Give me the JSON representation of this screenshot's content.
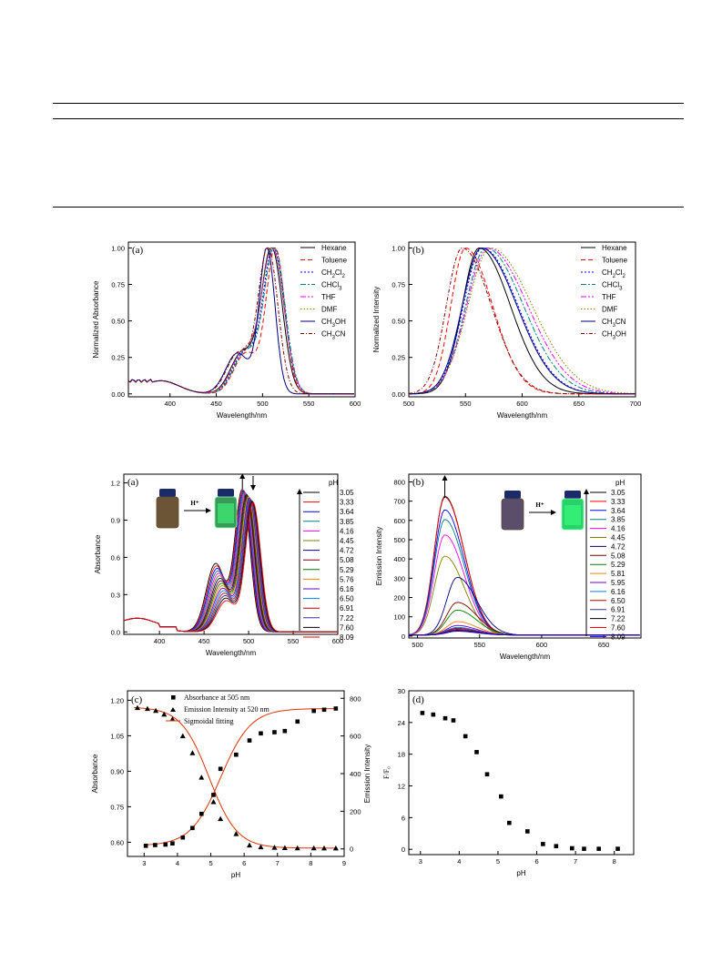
{
  "table_rules": [
    "rule-top",
    "rule-header",
    "rule-bottom"
  ],
  "colors": [
    "#000000",
    "#ff0000",
    "#0000ff",
    "#008080",
    "#ff00ff",
    "#808000",
    "#000080",
    "#800000",
    "#008000",
    "#ff8000",
    "#6600cc",
    "#0080ff",
    "#c00000",
    "#333399"
  ],
  "charts": [
    {
      "id": "abs-solvent",
      "panel": "(a)",
      "chart_data": {
        "type": "line",
        "xlabel": "Wavelength/nm",
        "ylabel": "Normalized Absorbance",
        "xlim": [
          355,
          600
        ],
        "ylim": [
          -0.02,
          1.04
        ],
        "xticks": [
          400,
          450,
          500,
          550,
          600
        ],
        "yticks": [
          0.0,
          0.25,
          0.5,
          0.75,
          1.0
        ],
        "series": [
          {
            "name": "Hexane",
            "peak": 510,
            "w": 16
          },
          {
            "name": "Toluene",
            "peak": 514,
            "w": 14
          },
          {
            "name": "CH2Cl2",
            "peak": 512,
            "w": 16
          },
          {
            "name": "CHCl3",
            "peak": 513,
            "w": 16
          },
          {
            "name": "THF",
            "peak": 511,
            "w": 17
          },
          {
            "name": "DMF",
            "peak": 511,
            "w": 17
          },
          {
            "name": "CH3OH",
            "peak": 505,
            "w": 12
          },
          {
            "name": "CH3CN",
            "peak": 506,
            "w": 15
          }
        ]
      }
    },
    {
      "id": "em-solvent",
      "panel": "(b)",
      "chart_data": {
        "type": "line",
        "xlabel": "Wavelength/nm",
        "ylabel": "Normalized Intensity",
        "xlim": [
          500,
          700
        ],
        "ylim": [
          -0.02,
          1.04
        ],
        "xticks": [
          500,
          550,
          600,
          650,
          700
        ],
        "yticks": [
          0.0,
          0.25,
          0.5,
          0.75,
          1.0
        ],
        "series": [
          {
            "name": "Hexane",
            "peak": 562,
            "w": 30
          },
          {
            "name": "Toluene",
            "peak": 550,
            "w": 26
          },
          {
            "name": "CH2Cl2",
            "peak": 565,
            "w": 34
          },
          {
            "name": "CHCl3",
            "peak": 568,
            "w": 36
          },
          {
            "name": "THF",
            "peak": 570,
            "w": 38
          },
          {
            "name": "DMF",
            "peak": 572,
            "w": 40
          },
          {
            "name": "CH3CN",
            "peak": 564,
            "w": 34
          },
          {
            "name": "CH3OH",
            "peak": 547,
            "w": 28
          }
        ]
      }
    },
    {
      "id": "abs-ph",
      "panel": "(a)",
      "chart_data": {
        "type": "line",
        "xlabel": "Wavelength/nm",
        "ylabel": "Absorbance",
        "legend_title": "pH",
        "xlim": [
          360,
          600
        ],
        "ylim": [
          -0.02,
          1.27
        ],
        "xticks": [
          400,
          450,
          500,
          550,
          600
        ],
        "yticks": [
          0.0,
          0.3,
          0.6,
          0.9,
          1.2
        ],
        "labels": [
          "3.05",
          "3.33",
          "3.64",
          "3.85",
          "4.16",
          "4.45",
          "4.72",
          "5.08",
          "5.29",
          "5.76",
          "6.16",
          "6.50",
          "6.91",
          "7.22",
          "7.60",
          "8.09"
        ],
        "inset_label": "H⁺"
      }
    },
    {
      "id": "em-ph",
      "panel": "(b)",
      "chart_data": {
        "type": "line",
        "xlabel": "Wavelength/nm",
        "ylabel": "Emission Intensity",
        "legend_title": "pH",
        "xlim": [
          493,
          680
        ],
        "ylim": [
          -10,
          840
        ],
        "xticks": [
          500,
          550,
          600,
          650
        ],
        "yticks": [
          0,
          100,
          200,
          300,
          400,
          500,
          600,
          700,
          800
        ],
        "labels": [
          "3.05",
          "3.33",
          "3.64",
          "3.85",
          "4.16",
          "4.45",
          "4.72",
          "5.08",
          "5.29",
          "5.81",
          "5.95",
          "6.16",
          "6.50",
          "6.91",
          "7.22",
          "7.60",
          "8.09"
        ],
        "peaks": [
          720,
          715,
          650,
          600,
          520,
          410,
          300,
          170,
          130,
          70,
          50,
          40,
          35,
          30,
          25,
          22,
          20
        ],
        "inset_label": "H⁺"
      }
    },
    {
      "id": "titration",
      "panel": "(c)",
      "chart_data": {
        "type": "scatter",
        "xlabel": "pH",
        "ylabel": "Absorbance",
        "y2label": "Emission Intensity",
        "xlim": [
          2.5,
          9.0
        ],
        "ylim": [
          0.54,
          1.24
        ],
        "y2lim": [
          -40,
          840
        ],
        "xticks": [
          3,
          4,
          5,
          6,
          7,
          8,
          9
        ],
        "yticks": [
          0.6,
          0.75,
          0.9,
          1.05,
          1.2
        ],
        "y2ticks": [
          0,
          200,
          400,
          600,
          800
        ],
        "legend": [
          "Absorbance at 505 nm",
          "Emission Intensity at 520 nm",
          "Sigmoidal fitting"
        ],
        "absorbance": {
          "x": [
            3.05,
            3.33,
            3.64,
            3.85,
            4.16,
            4.45,
            4.72,
            5.08,
            5.29,
            5.76,
            6.16,
            6.5,
            6.91,
            7.22,
            7.6,
            8.09,
            8.4,
            8.75
          ],
          "y": [
            0.585,
            0.588,
            0.59,
            0.595,
            0.62,
            0.66,
            0.72,
            0.8,
            0.91,
            0.97,
            1.03,
            1.06,
            1.065,
            1.07,
            1.11,
            1.155,
            1.16,
            1.165
          ]
        },
        "emission": {
          "x": [
            2.8,
            3.1,
            3.35,
            3.6,
            3.85,
            4.16,
            4.45,
            4.72,
            5.08,
            5.29,
            5.76,
            6.16,
            6.5,
            6.91,
            7.22,
            7.6,
            8.09,
            8.4,
            8.75
          ],
          "y": [
            750,
            745,
            735,
            715,
            690,
            600,
            510,
            380,
            250,
            160,
            80,
            20,
            10,
            8,
            6,
            5,
            5,
            4,
            4
          ]
        }
      }
    },
    {
      "id": "ratio",
      "panel": "(d)",
      "chart_data": {
        "type": "scatter",
        "xlabel": "pH",
        "ylabel": "F/F₀",
        "xlim": [
          2.7,
          8.5
        ],
        "ylim": [
          -1,
          30
        ],
        "xticks": [
          3,
          4,
          5,
          6,
          7,
          8
        ],
        "yticks": [
          0,
          6,
          12,
          18,
          24,
          30
        ],
        "x": [
          3.05,
          3.33,
          3.64,
          3.85,
          4.16,
          4.45,
          4.72,
          5.08,
          5.29,
          5.76,
          6.16,
          6.5,
          6.91,
          7.22,
          7.6,
          8.09
        ],
        "y": [
          25.8,
          25.5,
          24.8,
          24.4,
          21.4,
          18.4,
          14.2,
          10.0,
          5.0,
          3.4,
          1.0,
          0.6,
          0.2,
          0.1,
          0.1,
          0.1
        ]
      }
    }
  ]
}
